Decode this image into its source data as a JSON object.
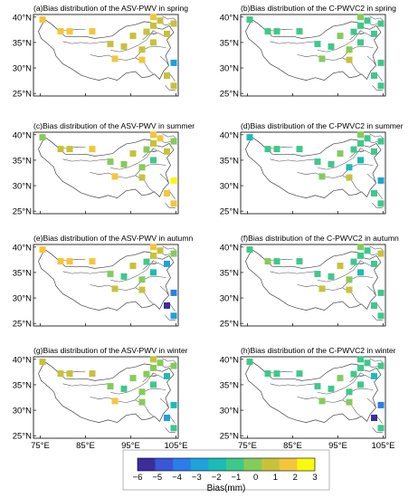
{
  "colorbar": {
    "label": "Bias(mm)",
    "ticks": [
      "−6",
      "−5",
      "−4",
      "−3",
      "−2",
      "−1",
      "0",
      "1",
      "2",
      "3"
    ],
    "range": [
      -6,
      3
    ],
    "colors": [
      "#3b2d9b",
      "#3b56d8",
      "#2a7ee8",
      "#1ea2da",
      "#1bbcb4",
      "#3fc88c",
      "#86cb5a",
      "#c7c23a",
      "#f3c63a",
      "#f9f80f"
    ]
  },
  "axes": {
    "xtick_labels": [
      "75°E",
      "85°E",
      "95°E",
      "105°E"
    ],
    "ytick_labels": [
      "25°N",
      "30°N",
      "35°N",
      "40°N"
    ],
    "x_ticks": [
      75,
      85,
      95,
      105
    ],
    "y_ticks": [
      25,
      30,
      35,
      40
    ],
    "xlim": [
      73.5,
      105.5
    ],
    "ylim": [
      24.5,
      40.5
    ]
  },
  "chart_data": [
    {
      "id": "a",
      "type": "scatter",
      "title": "(a)Bias distribution of the ASV-PWV in spring",
      "x": [
        75.5,
        79.5,
        81.5,
        86.5,
        90.5,
        91.5,
        93.5,
        95.5,
        97.5,
        97.5,
        98.5,
        100,
        100,
        100,
        101.5,
        103,
        103,
        104.5,
        104.5,
        104.5
      ],
      "y": [
        39.5,
        37.2,
        37.2,
        37.2,
        34.7,
        31.8,
        34.2,
        36.3,
        33.6,
        31.6,
        37.1,
        40,
        38.3,
        35,
        39.3,
        36.7,
        28.5,
        38.7,
        31,
        26.5
      ],
      "bias": [
        1.5,
        1.5,
        1.5,
        1.5,
        0.5,
        1.5,
        0.5,
        0.5,
        0.5,
        1.5,
        0.5,
        1.5,
        0.5,
        0.5,
        0.5,
        0.5,
        0.5,
        0.5,
        -3,
        0.5
      ]
    },
    {
      "id": "b",
      "type": "scatter",
      "title": "(b)Bias distribution of the C-PWVC2 in spring",
      "x": [
        75.5,
        79.5,
        81.5,
        86.5,
        90.5,
        91.5,
        93.5,
        95.5,
        97.5,
        97.5,
        98.5,
        100,
        100,
        100,
        101.5,
        103,
        103,
        104.5,
        104.5,
        104.5
      ],
      "y": [
        39.5,
        37.2,
        37.2,
        37.2,
        34.7,
        31.8,
        34.2,
        36.3,
        33.6,
        31.6,
        37.1,
        40,
        38.3,
        35,
        39.3,
        36.7,
        28.5,
        38.7,
        31,
        26.5
      ],
      "bias": [
        -1,
        -1,
        -1,
        -1,
        -1,
        0,
        -1,
        0,
        0,
        0.5,
        -1,
        0,
        -1,
        -1,
        -1,
        -1,
        -1,
        -1,
        -1,
        -1
      ]
    },
    {
      "id": "c",
      "type": "scatter",
      "title": "(c)Bias distribution of the ASV-PWV in summer",
      "x": [
        75.5,
        79.5,
        81.5,
        86.5,
        90.5,
        91.5,
        93.5,
        95.5,
        97.5,
        97.5,
        98.5,
        100,
        100,
        100,
        101.5,
        103,
        103,
        104.5,
        104.5,
        104.5
      ],
      "y": [
        39.5,
        37.2,
        37.2,
        37.2,
        34.7,
        31.8,
        34.2,
        36.3,
        33.6,
        31.6,
        37.1,
        40,
        38.3,
        35,
        39.3,
        36.7,
        28.5,
        38.7,
        31,
        26.5
      ],
      "bias": [
        0,
        0.5,
        0.5,
        1.5,
        0,
        1.5,
        0,
        0.5,
        0,
        0.5,
        -0.5,
        1.5,
        0.5,
        -1,
        2,
        0.5,
        2,
        0,
        3,
        1.5
      ]
    },
    {
      "id": "d",
      "type": "scatter",
      "title": "(d)Bias distribution of the C-PWVC2 in summer",
      "x": [
        75.5,
        79.5,
        81.5,
        86.5,
        90.5,
        91.5,
        93.5,
        95.5,
        97.5,
        97.5,
        98.5,
        100,
        100,
        100,
        101.5,
        103,
        103,
        104.5,
        104.5,
        104.5
      ],
      "y": [
        39.5,
        37.2,
        37.2,
        37.2,
        34.7,
        31.8,
        34.2,
        36.3,
        33.6,
        31.6,
        37.1,
        40,
        38.3,
        35,
        39.3,
        36.7,
        28.5,
        38.7,
        31,
        26.5
      ],
      "bias": [
        -2,
        -1,
        -1,
        -1,
        -1,
        0,
        -1,
        0,
        -2,
        0.5,
        -1,
        0,
        -1,
        -2,
        -1,
        -1,
        -1,
        -1,
        -3,
        -1
      ]
    },
    {
      "id": "e",
      "type": "scatter",
      "title": "(e)Bias distribution of the ASV-PWV in autumn",
      "x": [
        75.5,
        79.5,
        81.5,
        86.5,
        90.5,
        91.5,
        93.5,
        95.5,
        97.5,
        97.5,
        98.5,
        100,
        100,
        100,
        101.5,
        103,
        103,
        104.5,
        104.5,
        104.5
      ],
      "y": [
        39.5,
        37.2,
        37.2,
        37.2,
        34.7,
        31.8,
        34.2,
        36.3,
        33.6,
        31.6,
        37.1,
        40,
        38.3,
        35,
        39.3,
        36.7,
        28.5,
        38.7,
        31,
        26.5
      ],
      "bias": [
        1.5,
        2,
        1.5,
        2,
        0,
        1,
        -1,
        0.5,
        0,
        0.5,
        -1,
        2,
        0.5,
        -2,
        0.5,
        -3,
        -6,
        0,
        -4,
        -3
      ]
    },
    {
      "id": "f",
      "type": "scatter",
      "title": "(f)Bias distribution of the C-PWVC2 in autumn",
      "x": [
        75.5,
        79.5,
        81.5,
        86.5,
        90.5,
        91.5,
        93.5,
        95.5,
        97.5,
        97.5,
        98.5,
        100,
        100,
        100,
        101.5,
        103,
        103,
        104.5,
        104.5,
        104.5
      ],
      "y": [
        39.5,
        37.2,
        37.2,
        37.2,
        34.7,
        31.8,
        34.2,
        36.3,
        33.6,
        31.6,
        37.1,
        40,
        38.3,
        35,
        39.3,
        36.7,
        28.5,
        38.7,
        31,
        26.5
      ],
      "bias": [
        -1,
        0,
        -1,
        -1,
        -1,
        0.5,
        -1,
        0.5,
        0,
        0.5,
        -1,
        0,
        -1,
        -2,
        -1,
        -1,
        -1,
        0.5,
        -1,
        -1
      ]
    },
    {
      "id": "g",
      "type": "scatter",
      "title": "(g)Bias distribution of the ASV-PWV in winter",
      "x": [
        75.5,
        79.5,
        81.5,
        86.5,
        90.5,
        91.5,
        93.5,
        95.5,
        97.5,
        97.5,
        98.5,
        100,
        100,
        100,
        101.5,
        103,
        103,
        104.5,
        104.5,
        104.5
      ],
      "y": [
        39.5,
        37.2,
        37.2,
        37.2,
        34.7,
        31.8,
        34.2,
        36.3,
        33.6,
        31.6,
        37.1,
        40,
        38.3,
        35,
        39.3,
        36.7,
        28.5,
        38.7,
        31,
        26.5
      ],
      "bias": [
        0.5,
        0.5,
        0.5,
        0.5,
        0,
        1.5,
        -1,
        0,
        -0.5,
        0,
        0,
        0.5,
        0,
        -1,
        0,
        -2,
        -3,
        0,
        -2,
        -1
      ]
    },
    {
      "id": "h",
      "type": "scatter",
      "title": "(h)Bias distribution of the C-PWVC2 in winter",
      "x": [
        75.5,
        79.5,
        81.5,
        86.5,
        90.5,
        91.5,
        93.5,
        95.5,
        97.5,
        97.5,
        98.5,
        100,
        100,
        100,
        101.5,
        103,
        103,
        104.5,
        104.5,
        104.5
      ],
      "y": [
        39.5,
        37.2,
        37.2,
        37.2,
        34.7,
        31.8,
        34.2,
        36.3,
        33.6,
        31.6,
        37.1,
        40,
        38.3,
        35,
        39.3,
        36.7,
        28.5,
        38.7,
        31,
        26.5
      ],
      "bias": [
        -1,
        -1,
        -1,
        -1,
        -1,
        0,
        -1,
        0,
        -1,
        0,
        -1,
        -1,
        -1,
        -1,
        -1,
        -2,
        -6,
        -1,
        -4,
        -1
      ]
    }
  ]
}
